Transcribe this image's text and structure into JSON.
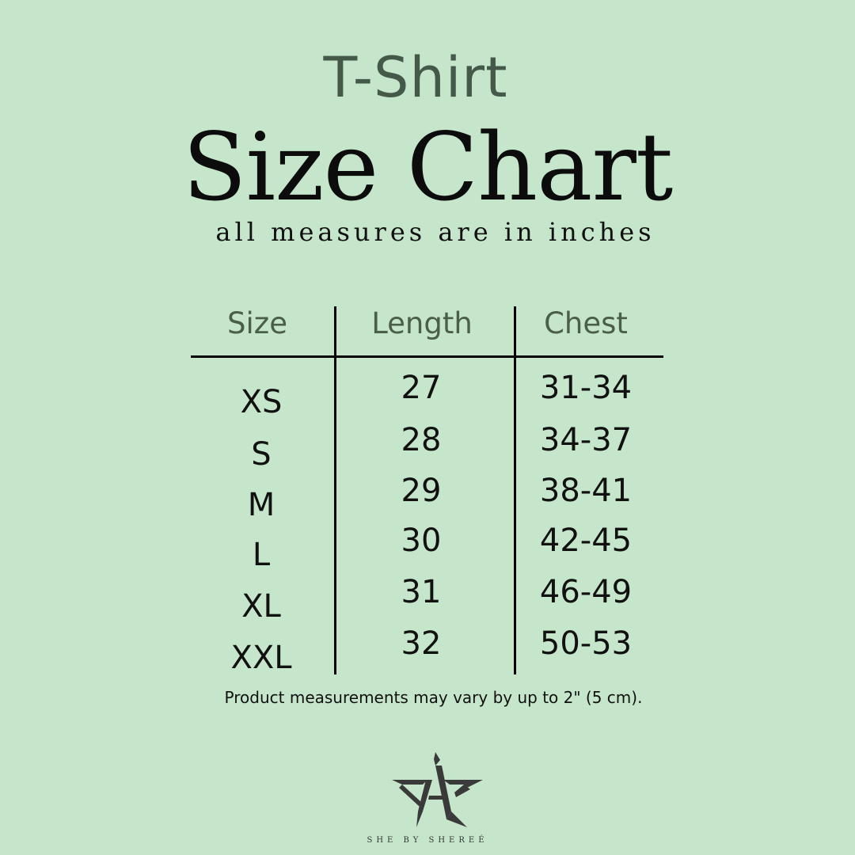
{
  "header": {
    "product": "T-Shirt",
    "title": "Size Chart",
    "subtitle": "all measures are in inches"
  },
  "table": {
    "columns": [
      "Size",
      "Length",
      "Chest"
    ],
    "rows": [
      {
        "size": "XS",
        "length": "27",
        "chest": "31-34"
      },
      {
        "size": "S",
        "length": "28",
        "chest": "34-37"
      },
      {
        "size": "M",
        "length": "29",
        "chest": "38-41"
      },
      {
        "size": "L",
        "length": "30",
        "chest": "42-45"
      },
      {
        "size": "XL",
        "length": "31",
        "chest": "46-49"
      },
      {
        "size": "XXL",
        "length": "32",
        "chest": "50-53"
      }
    ]
  },
  "note": "Product measurements may vary by up to 2\" (5 cm).",
  "brand": {
    "logo_text": "SHE",
    "name": "SHE BY SHEREÉ"
  },
  "colors": {
    "background": "#c6e6cb",
    "accent": "#4a5e48",
    "logo": "#3a3a3a"
  }
}
